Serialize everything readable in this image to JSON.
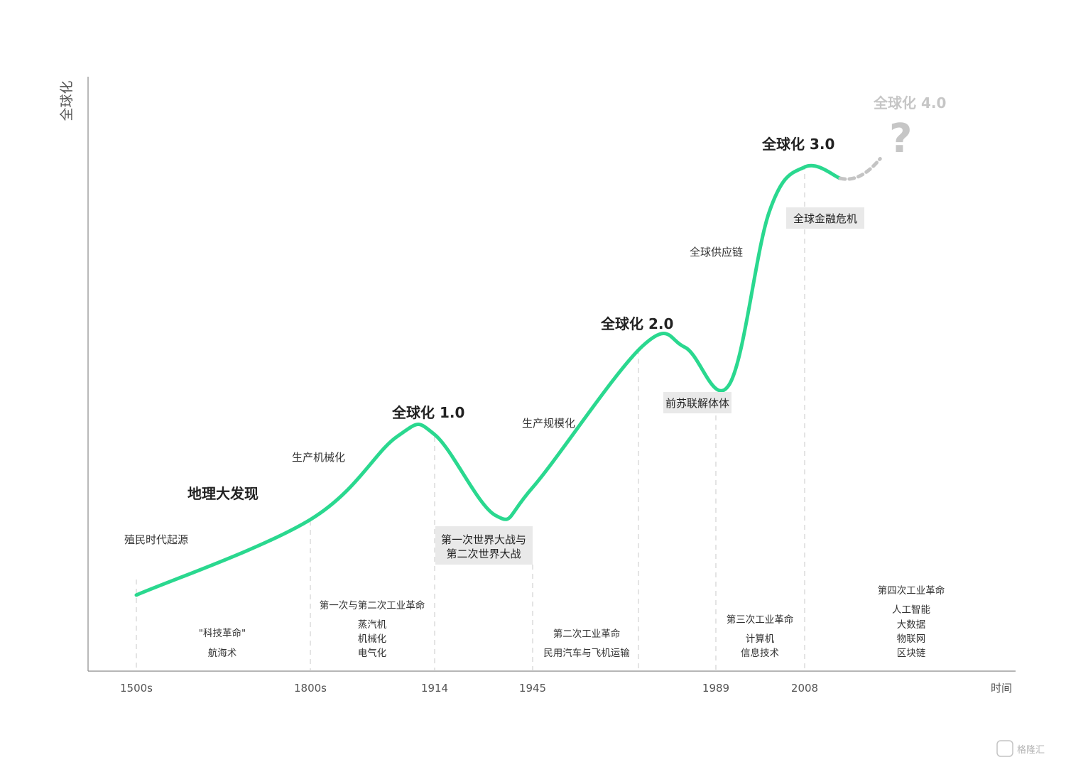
{
  "chart_data": {
    "type": "line",
    "ylabel": "全球化",
    "xlabel": "时间",
    "x_ticks": [
      "1500s",
      "1800s",
      "1914",
      "1945",
      "1989",
      "2008"
    ],
    "series": [
      {
        "values": [
          {
            "x": 0.0,
            "y": 0.128
          },
          {
            "x": 1.0,
            "y": 0.255
          },
          {
            "x": 1.7,
            "y": 0.395
          },
          {
            "x": 2.0,
            "y": 0.398
          },
          {
            "x": 2.62,
            "y": 0.262
          },
          {
            "x": 3.0,
            "y": 0.309
          },
          {
            "x": 3.6,
            "y": 0.547
          },
          {
            "x": 3.83,
            "y": 0.545
          },
          {
            "x": 4.15,
            "y": 0.482
          },
          {
            "x": 4.6,
            "y": 0.772
          },
          {
            "x": 5.0,
            "y": 0.848
          },
          {
            "x": 5.4,
            "y": 0.829
          }
        ]
      },
      {
        "values": [
          {
            "x": 5.4,
            "y": 0.829
          },
          {
            "x": 5.85,
            "y": 0.862
          }
        ]
      }
    ],
    "annotations": {
      "phases": [
        "地理大发现",
        "全球化 1.0",
        "全球化 2.0",
        "全球化 3.0",
        "全球化 4.0"
      ],
      "question_mark": "?",
      "notes": [
        "殖民时代起源",
        "生产机械化",
        "生产规模化",
        "全球供应链"
      ],
      "events": [
        "第一次世界大战与",
        "第二次世界大战",
        "前苏联解体体",
        "全球金融危机"
      ]
    },
    "tech_revolutions": [
      {
        "title": "\"科技革命\"",
        "items": [
          "航海术"
        ]
      },
      {
        "title": "第一次与第二次工业革命",
        "items": [
          "蒸汽机",
          "机械化",
          "电气化"
        ]
      },
      {
        "title": "第二次工业革命",
        "items": [
          "民用汽车与飞机运输"
        ]
      },
      {
        "title": "第三次工业革命",
        "items": [
          "计算机",
          "信息技术"
        ]
      },
      {
        "title": "第四次工业革命",
        "items": [
          "人工智能",
          "大数据",
          "物联网",
          "区块链"
        ]
      }
    ],
    "grid": false,
    "legend": "none"
  },
  "watermark": "格隆汇"
}
